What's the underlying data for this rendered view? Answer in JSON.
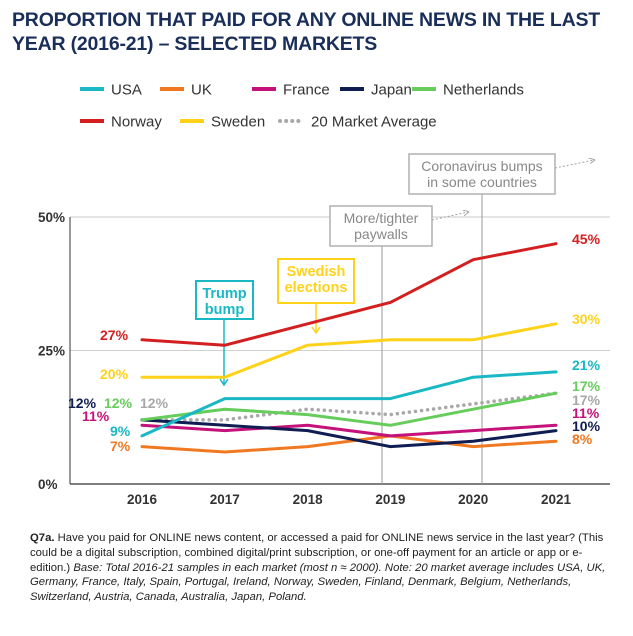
{
  "title": "PROPORTION THAT PAID FOR ANY ONLINE NEWS IN THE LAST YEAR (2016-21) – SELECTED MARKETS",
  "chart_data": {
    "type": "line",
    "title": "PROPORTION THAT PAID FOR ANY ONLINE NEWS IN THE LAST YEAR (2016-21) – SELECTED MARKETS",
    "x": [
      "2016",
      "2017",
      "2018",
      "2019",
      "2020",
      "2021"
    ],
    "ylim": [
      0,
      50
    ],
    "yticks": [
      "0%",
      "25%",
      "50%"
    ],
    "xlabel": "",
    "ylabel": "",
    "series": [
      {
        "name": "USA",
        "color": "#1ab8c4",
        "values": [
          9,
          16,
          16,
          16,
          20,
          21
        ],
        "dashed": false
      },
      {
        "name": "UK",
        "color": "#f07820",
        "values": [
          7,
          6,
          7,
          9,
          7,
          8
        ],
        "dashed": false
      },
      {
        "name": "France",
        "color": "#c4127a",
        "values": [
          11,
          10,
          11,
          9,
          10,
          11
        ],
        "dashed": false
      },
      {
        "name": "Japan",
        "color": "#0f1d52",
        "values": [
          12,
          11,
          10,
          7,
          8,
          10
        ],
        "dashed": false
      },
      {
        "name": "Netherlands",
        "color": "#66cc5c",
        "values": [
          12,
          14,
          13,
          11,
          14,
          17
        ],
        "dashed": false
      },
      {
        "name": "Norway",
        "color": "#d31f1f",
        "values": [
          27,
          26,
          30,
          34,
          42,
          45
        ],
        "dashed": false
      },
      {
        "name": "Sweden",
        "color": "#ffd21a",
        "values": [
          20,
          20,
          26,
          27,
          27,
          30
        ],
        "dashed": false
      },
      {
        "name": "20 Market Average",
        "color": "#a8a8a8",
        "values": [
          12,
          12,
          14,
          13,
          15,
          17
        ],
        "dashed": true
      }
    ],
    "start_labels": [
      {
        "text": "27%",
        "color": "#d31f1f"
      },
      {
        "text": "20%",
        "color": "#ffd21a"
      },
      {
        "text": "12%",
        "color": "#0f1d52"
      },
      {
        "text": "12%",
        "color": "#66cc5c"
      },
      {
        "text": "12%",
        "color": "#a8a8a8"
      },
      {
        "text": "11%",
        "color": "#c4127a"
      },
      {
        "text": "9%",
        "color": "#1ab8c4"
      },
      {
        "text": "7%",
        "color": "#f07820"
      }
    ],
    "end_labels": [
      {
        "text": "45%",
        "color": "#d31f1f"
      },
      {
        "text": "30%",
        "color": "#ffd21a"
      },
      {
        "text": "21%",
        "color": "#1ab8c4"
      },
      {
        "text": "17%",
        "color": "#66cc5c"
      },
      {
        "text": "17%",
        "color": "#a8a8a8"
      },
      {
        "text": "11%",
        "color": "#c4127a"
      },
      {
        "text": "10%",
        "color": "#0f1d52"
      },
      {
        "text": "8%",
        "color": "#f07820"
      }
    ],
    "annotations": [
      {
        "lines": [
          "Trump",
          "bump"
        ],
        "color": "#1ab8c4"
      },
      {
        "lines": [
          "Swedish",
          "elections"
        ],
        "color": "#ffd21a"
      },
      {
        "lines": [
          "More/tighter",
          "paywalls"
        ],
        "color": "#b0b0b0"
      },
      {
        "lines": [
          "Coronavirus bumps",
          "in some countries"
        ],
        "color": "#b0b0b0"
      }
    ]
  },
  "footnote": {
    "question_id": "Q7a.",
    "question": "Have you paid for ONLINE news content, or accessed a paid for ONLINE news service in the last year? (This could be a digital subscription, combined digital/print subscription, or one-off payment for an article or app or e-edition.)",
    "base": "Base: Total 2016-21 samples in each market (most n ≈ 2000). Note: 20 market average includes USA, UK, Germany, France, Italy, Spain, Portugal, Ireland, Norway, Sweden, Finland, Denmark, Belgium, Netherlands, Switzerland, Austria, Canada, Australia, Japan, Poland."
  }
}
